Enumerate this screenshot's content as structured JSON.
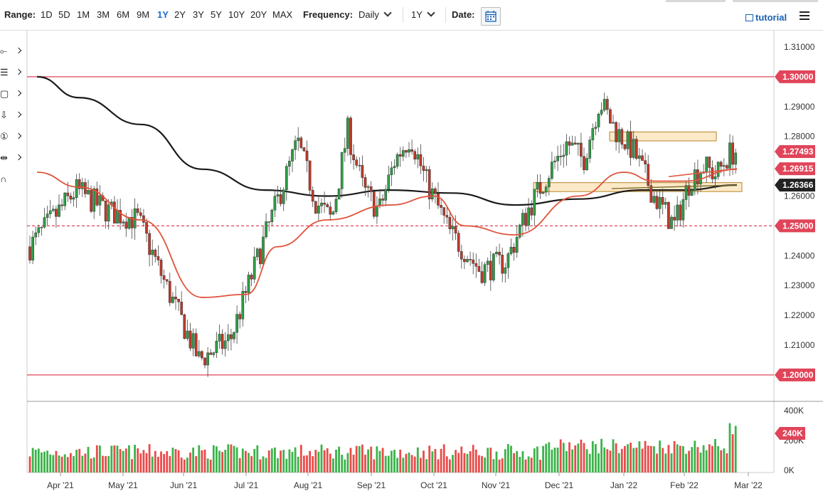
{
  "toolbar": {
    "range_label": "Range:",
    "ranges": [
      "1D",
      "5D",
      "1M",
      "3M",
      "6M",
      "9M",
      "1Y",
      "2Y",
      "3Y",
      "5Y",
      "10Y",
      "20Y",
      "MAX"
    ],
    "active_range": "1Y",
    "frequency_label": "Frequency:",
    "frequency_value": "Daily",
    "period_value": "1Y",
    "date_label": "Date:",
    "date_icon": "calendar-icon",
    "tutorial_label": "tutorial",
    "tutorial_icon": "film-icon",
    "menu_icon": "hamburger-menu-icon"
  },
  "sidebar_tools": [
    {
      "name": "crosshair-line-tool",
      "icon": "line-tool-icon"
    },
    {
      "name": "fibonacci-tool",
      "icon": "fibonacci-icon"
    },
    {
      "name": "shape-tool",
      "icon": "rectangle-icon"
    },
    {
      "name": "arrow-tool",
      "icon": "arrow-down-icon"
    },
    {
      "name": "annotation-tool",
      "icon": "number-one-icon"
    },
    {
      "name": "measure-tool",
      "icon": "measure-icon"
    },
    {
      "name": "magnet-tool",
      "icon": "magnet-icon"
    }
  ],
  "colors": {
    "up_candle": "#2e9e45",
    "down_candle": "#c0392b",
    "ma_fast": "#e0533a",
    "ma_slow": "#1a1a1a",
    "resistance_line": "#e0455a",
    "zone_fill": "#fbe9c8",
    "zone_border": "#b8862a",
    "tag_red": "#e0455a",
    "tag_black": "#222222"
  },
  "chart_data": {
    "type": "candlestick",
    "y_axis": {
      "min": 1.19,
      "max": 1.315,
      "ticks": [
        "1.31000",
        "1.29000",
        "1.28000",
        "1.27000",
        "1.26000",
        "1.24000",
        "1.23000",
        "1.22000",
        "1.21000"
      ]
    },
    "x_axis": {
      "ticks": [
        "Apr '21",
        "May '21",
        "Jun '21",
        "Jul '21",
        "Aug '21",
        "Sep '21",
        "Oct '21",
        "Nov '21",
        "Dec '21",
        "Jan '22",
        "Feb '22",
        "Mar '22"
      ]
    },
    "price_tags": [
      {
        "label": "1.30000",
        "value": 1.3,
        "style": "red"
      },
      {
        "label": "1.27493",
        "value": 1.27493,
        "style": "red"
      },
      {
        "label": "1.26915",
        "value": 1.26915,
        "style": "red"
      },
      {
        "label": "1.26366",
        "value": 1.26366,
        "style": "black"
      },
      {
        "label": "1.25000",
        "value": 1.25,
        "style": "red"
      },
      {
        "label": "1.20000",
        "value": 1.2,
        "style": "red"
      }
    ],
    "horizontal_lines": [
      {
        "value": 1.3,
        "style": "solid"
      },
      {
        "value": 1.25,
        "style": "dashed"
      },
      {
        "value": 1.2,
        "style": "solid"
      }
    ],
    "zones": [
      {
        "from": "Dec '21",
        "to": "Feb '22",
        "low": 1.2785,
        "high": 1.2815
      },
      {
        "from": "Nov '21",
        "to": "Feb '22",
        "low": 1.2615,
        "high": 1.2645
      }
    ],
    "close_path": [
      [
        "Mar '21",
        1.243
      ],
      [
        "Apr '21",
        1.262
      ],
      [
        "Apr '21",
        1.255
      ],
      [
        "May '21",
        1.252
      ],
      [
        "May '21",
        1.228
      ],
      [
        "Jun '21",
        1.205
      ],
      [
        "Jun '21",
        1.212
      ],
      [
        "Jul '21",
        1.238
      ],
      [
        "Jul '21",
        1.258
      ],
      [
        "Jul '21",
        1.278
      ],
      [
        "Aug '21",
        1.258
      ],
      [
        "Aug '21",
        1.252
      ],
      [
        "Aug '21",
        1.282
      ],
      [
        "Aug '21",
        1.262
      ],
      [
        "Sep '21",
        1.255
      ],
      [
        "Sep '21",
        1.272
      ],
      [
        "Sep '21",
        1.28
      ],
      [
        "Sep '21",
        1.265
      ],
      [
        "Oct '21",
        1.248
      ],
      [
        "Oct '21",
        1.235
      ],
      [
        "Nov '21",
        1.238
      ],
      [
        "Nov '21",
        1.255
      ],
      [
        "Nov '21",
        1.268
      ],
      [
        "Dec '21",
        1.278
      ],
      [
        "Dec '21",
        1.272
      ],
      [
        "Dec '21",
        1.292
      ],
      [
        "Dec '21",
        1.282
      ],
      [
        "Jan '22",
        1.275
      ],
      [
        "Jan '22",
        1.26
      ],
      [
        "Jan '22",
        1.25
      ],
      [
        "Feb '22",
        1.266
      ],
      [
        "Feb '22",
        1.27
      ],
      [
        "Feb '22",
        1.267
      ],
      [
        "Feb '22",
        1.274
      ],
      [
        "Feb '22",
        1.2749
      ]
    ],
    "ma_fast_path": [
      [
        "Mar '21",
        1.268
      ],
      [
        "Apr '21",
        1.263
      ],
      [
        "May '21",
        1.252
      ],
      [
        "Jun '21",
        1.226
      ],
      [
        "Jul '21",
        1.227
      ],
      [
        "Jul '21",
        1.243
      ],
      [
        "Aug '21",
        1.252
      ],
      [
        "Sep '21",
        1.257
      ],
      [
        "Oct '21",
        1.26
      ],
      [
        "Oct '21",
        1.25
      ],
      [
        "Nov '21",
        1.247
      ],
      [
        "Dec '21",
        1.26
      ],
      [
        "Jan '22",
        1.268
      ],
      [
        "Jan '22",
        1.265
      ],
      [
        "Feb '22",
        1.265
      ],
      [
        "Feb '22",
        1.269
      ]
    ],
    "ma_slow_path": [
      [
        "Mar '21",
        1.3
      ],
      [
        "Apr '21",
        1.293
      ],
      [
        "May '21",
        1.284
      ],
      [
        "Jun '21",
        1.269
      ],
      [
        "Jul '21",
        1.262
      ],
      [
        "Aug '21",
        1.26
      ],
      [
        "Sep '21",
        1.262
      ],
      [
        "Oct '21",
        1.261
      ],
      [
        "Nov '21",
        1.257
      ],
      [
        "Dec '21",
        1.259
      ],
      [
        "Jan '22",
        1.262
      ],
      [
        "Feb '22",
        1.262
      ],
      [
        "Feb '22",
        1.2637
      ]
    ],
    "volume": {
      "ticks": [
        "400K",
        "200K",
        "0K"
      ],
      "last_tag": "240K",
      "max_value": 400000
    }
  }
}
